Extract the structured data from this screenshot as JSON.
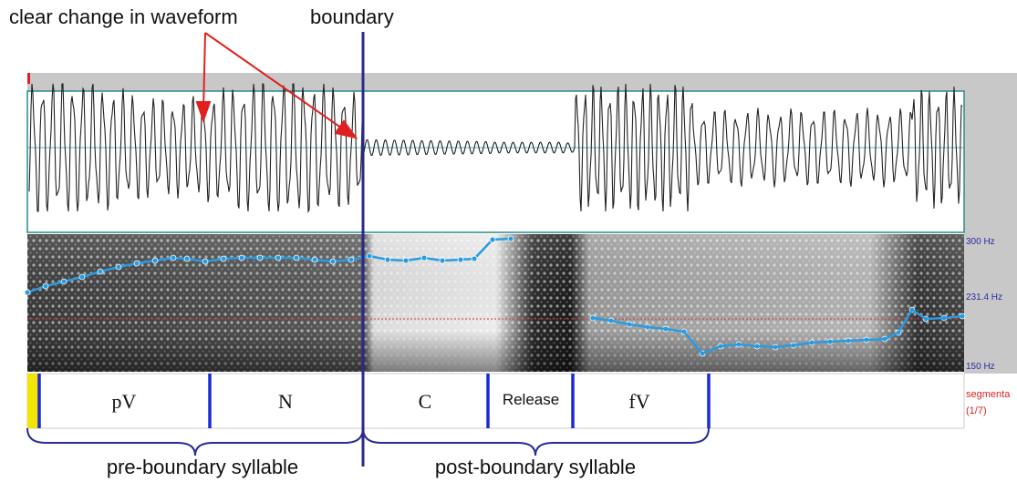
{
  "annotations": {
    "waveform_change": "clear change in waveform",
    "boundary": "boundary",
    "pre_syllable": "pre-boundary syllable",
    "post_syllable": "post-boundary syllable"
  },
  "spectrogram": {
    "axis_labels": [
      "300 Hz",
      "231.4 Hz",
      "150 Hz"
    ]
  },
  "tier": {
    "name": "segmenta",
    "counter": "(1/7)",
    "segments": [
      "pV",
      "N",
      "C",
      "Release",
      "fV"
    ]
  }
}
